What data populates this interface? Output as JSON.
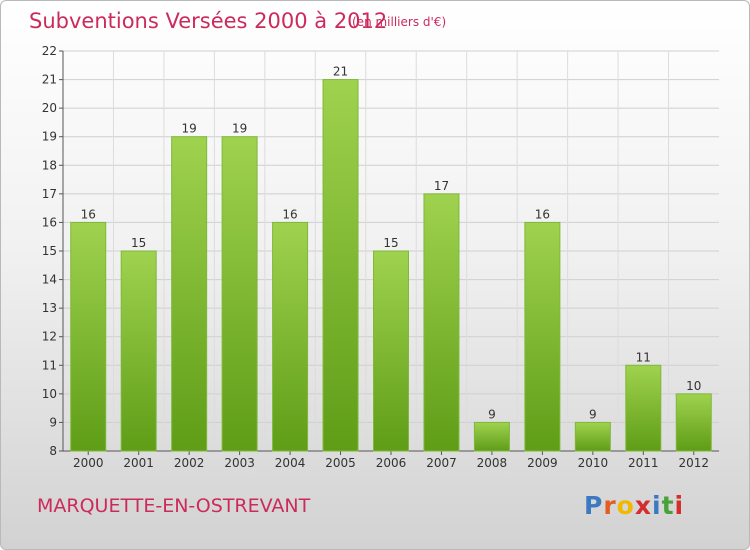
{
  "header": {
    "title": "Subventions Versées 2000 à 2012",
    "unit_note": "(en milliers d'€)"
  },
  "footer": {
    "commune": "MARQUETTE-EN-OSTREVANT",
    "logo": {
      "letters": [
        "P",
        "r",
        "o",
        "x",
        "i",
        "t",
        "i"
      ],
      "colors": [
        "#3b79c1",
        "#e35c21",
        "#f1b800",
        "#d32d2d",
        "#3b79c1",
        "#47a23a",
        "#d32d2d"
      ]
    }
  },
  "colors": {
    "accent": "#cc2a5d",
    "bar_top": "#9fd24f",
    "bar_bottom": "#5f9d17",
    "axis": "#555555",
    "grid": "#cfcfcf"
  },
  "chart_data": {
    "type": "bar",
    "title": "Subventions Versées 2000 à 2012",
    "subtitle": "(en milliers d'€)",
    "xlabel": "",
    "ylabel": "",
    "categories": [
      "2000",
      "2001",
      "2002",
      "2003",
      "2004",
      "2005",
      "2006",
      "2007",
      "2008",
      "2009",
      "2010",
      "2011",
      "2012"
    ],
    "values": [
      16,
      15,
      19,
      19,
      16,
      21,
      15,
      17,
      9,
      16,
      9,
      11,
      10
    ],
    "ylim": [
      8,
      22
    ],
    "yticks": [
      8,
      9,
      10,
      11,
      12,
      13,
      14,
      15,
      16,
      17,
      18,
      19,
      20,
      21,
      22
    ],
    "grid": true,
    "data_labels": true
  }
}
